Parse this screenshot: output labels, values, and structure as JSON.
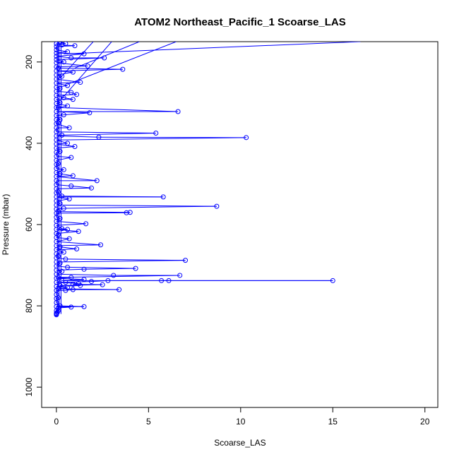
{
  "chart_data": {
    "type": "scatter",
    "title": "ATOM2 Northeast_Pacific_1 Scoarse_LAS",
    "xlabel": "Scoarse_LAS",
    "ylabel": "Pressure (mbar)",
    "xlim": [
      -0.8,
      20.7
    ],
    "ylim": [
      1050,
      150
    ],
    "y_reversed": true,
    "x_ticks": [
      0,
      5,
      10,
      15,
      20
    ],
    "y_ticks": [
      200,
      400,
      600,
      800,
      1000
    ],
    "grid": false,
    "connected": true,
    "color": "#0000ff",
    "marker": "open-circle",
    "series": [
      {
        "points": [
          [
            0.2,
            150
          ],
          [
            0.5,
            155
          ],
          [
            0.3,
            158
          ],
          [
            1.0,
            160
          ],
          [
            0.6,
            175
          ],
          [
            1.5,
            180
          ],
          [
            0.8,
            190
          ],
          [
            2.6,
            190
          ],
          [
            0.4,
            200
          ],
          [
            1.7,
            210
          ],
          [
            0.1,
            215
          ],
          [
            3.6,
            218
          ],
          [
            0.9,
            225
          ],
          [
            0.3,
            235
          ],
          [
            1.3,
            250
          ],
          [
            0.6,
            258
          ],
          [
            0.2,
            265
          ],
          [
            0.8,
            275
          ],
          [
            1.1,
            280
          ],
          [
            0.4,
            288
          ],
          [
            0.9,
            292
          ],
          [
            0.2,
            300
          ],
          [
            0.6,
            308
          ],
          [
            0.1,
            312
          ],
          [
            1.8,
            325
          ],
          [
            6.6,
            322
          ],
          [
            0.4,
            330
          ],
          [
            0.2,
            342
          ],
          [
            0.1,
            350
          ],
          [
            0.7,
            362
          ],
          [
            5.4,
            375
          ],
          [
            0.3,
            380
          ],
          [
            2.3,
            385
          ],
          [
            10.3,
            386
          ],
          [
            0.6,
            400
          ],
          [
            1.0,
            408
          ],
          [
            0.2,
            420
          ],
          [
            0.8,
            435
          ],
          [
            0.1,
            450
          ],
          [
            0.4,
            465
          ],
          [
            0.2,
            475
          ],
          [
            0.9,
            480
          ],
          [
            2.2,
            492
          ],
          [
            0.8,
            505
          ],
          [
            1.9,
            510
          ],
          [
            0.1,
            520
          ],
          [
            0.3,
            530
          ],
          [
            5.8,
            532
          ],
          [
            0.7,
            537
          ],
          [
            0.2,
            548
          ],
          [
            8.7,
            555
          ],
          [
            0.4,
            560
          ],
          [
            0.1,
            568
          ],
          [
            4.0,
            570
          ],
          [
            3.8,
            571
          ],
          [
            0.2,
            585
          ],
          [
            1.6,
            598
          ],
          [
            1.2,
            617
          ],
          [
            0.3,
            610
          ],
          [
            0.6,
            612
          ],
          [
            0.1,
            625
          ],
          [
            0.7,
            635
          ],
          [
            2.4,
            650
          ],
          [
            0.2,
            655
          ],
          [
            1.1,
            660
          ],
          [
            0.4,
            668
          ],
          [
            0.1,
            678
          ],
          [
            0.5,
            685
          ],
          [
            7.0,
            688
          ],
          [
            0.2,
            695
          ],
          [
            0.6,
            705
          ],
          [
            4.3,
            708
          ],
          [
            1.5,
            710
          ],
          [
            0.3,
            715
          ],
          [
            3.1,
            725
          ],
          [
            6.7,
            725
          ],
          [
            0.1,
            730
          ],
          [
            0.8,
            730
          ],
          [
            1.5,
            735
          ],
          [
            0.3,
            738
          ],
          [
            15.0,
            738
          ],
          [
            5.7,
            738
          ],
          [
            6.1,
            738
          ],
          [
            2.8,
            738
          ],
          [
            1.9,
            740
          ],
          [
            0.5,
            742
          ],
          [
            1.2,
            745
          ],
          [
            0.9,
            747
          ],
          [
            2.5,
            748
          ],
          [
            0.2,
            750
          ],
          [
            1.3,
            750
          ],
          [
            0.6,
            755
          ],
          [
            0.1,
            758
          ],
          [
            3.4,
            760
          ],
          [
            0.9,
            760
          ],
          [
            0.5,
            762
          ],
          [
            0.1,
            780
          ],
          [
            0.2,
            800
          ],
          [
            1.5,
            802
          ],
          [
            0.8,
            803
          ],
          [
            0.1,
            805
          ],
          [
            0.1,
            812
          ],
          [
            0.05,
            816
          ],
          [
            0.0,
            820
          ]
        ],
        "zero_points": [
          155,
          162,
          170,
          178,
          186,
          194,
          202,
          212,
          222,
          232,
          242,
          252,
          262,
          272,
          282,
          292,
          302,
          312,
          322,
          332,
          342,
          352,
          362,
          372,
          382,
          392,
          402,
          412,
          422,
          432,
          442,
          452,
          462,
          472,
          482,
          492,
          502,
          512,
          522,
          532,
          542,
          552,
          562,
          572,
          582,
          592,
          602,
          612,
          622,
          632,
          642,
          652,
          662,
          672,
          682,
          692,
          702,
          712,
          722,
          732,
          742,
          752,
          762,
          772,
          782,
          792,
          802,
          812,
          818,
          822
        ]
      }
    ]
  }
}
